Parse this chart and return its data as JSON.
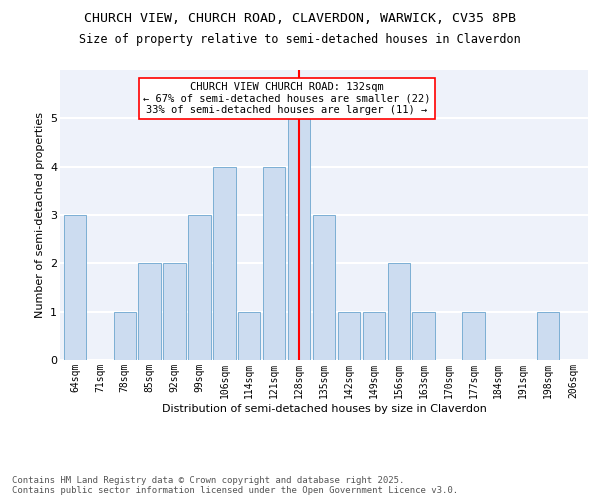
{
  "title1": "CHURCH VIEW, CHURCH ROAD, CLAVERDON, WARWICK, CV35 8PB",
  "title2": "Size of property relative to semi-detached houses in Claverdon",
  "xlabel": "Distribution of semi-detached houses by size in Claverdon",
  "ylabel": "Number of semi-detached properties",
  "bins": [
    "64sqm",
    "71sqm",
    "78sqm",
    "85sqm",
    "92sqm",
    "99sqm",
    "106sqm",
    "114sqm",
    "121sqm",
    "128sqm",
    "135sqm",
    "142sqm",
    "149sqm",
    "156sqm",
    "163sqm",
    "170sqm",
    "177sqm",
    "184sqm",
    "191sqm",
    "198sqm",
    "206sqm"
  ],
  "values": [
    3,
    0,
    1,
    2,
    2,
    3,
    4,
    1,
    4,
    5,
    3,
    1,
    1,
    2,
    1,
    0,
    1,
    0,
    0,
    1,
    0
  ],
  "bar_color": "#ccdcf0",
  "bar_edge_color": "#7bafd4",
  "marker_bin_index": 9,
  "marker_color": "red",
  "annotation_text": "CHURCH VIEW CHURCH ROAD: 132sqm\n← 67% of semi-detached houses are smaller (22)\n33% of semi-detached houses are larger (11) →",
  "annotation_box_color": "white",
  "annotation_box_edge_color": "red",
  "ylim": [
    0,
    6
  ],
  "yticks": [
    0,
    1,
    2,
    3,
    4,
    5
  ],
  "footer": "Contains HM Land Registry data © Crown copyright and database right 2025.\nContains public sector information licensed under the Open Government Licence v3.0.",
  "background_color": "#eef2fa",
  "grid_color": "white",
  "title1_fontsize": 9.5,
  "title2_fontsize": 8.5,
  "axis_label_fontsize": 8,
  "tick_fontsize": 7,
  "annotation_fontsize": 7.5,
  "footer_fontsize": 6.5
}
